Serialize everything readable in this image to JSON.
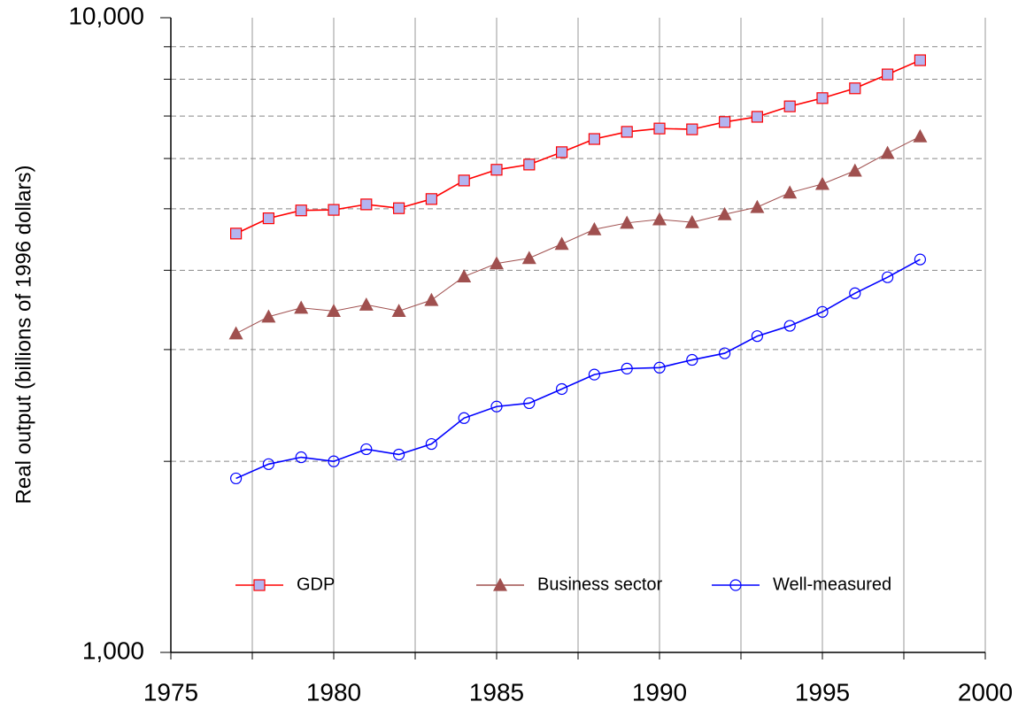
{
  "chart_data": {
    "type": "line",
    "y_label": "Real output (billions of 1996 dollars)",
    "x": [
      1977,
      1978,
      1979,
      1980,
      1981,
      1982,
      1983,
      1984,
      1985,
      1986,
      1987,
      1988,
      1989,
      1990,
      1991,
      1992,
      1993,
      1994,
      1995,
      1996,
      1997,
      1998
    ],
    "series": [
      {
        "name": "GDP",
        "color": "#ff0000",
        "marker": "square",
        "marker_fill": "#b4b4f0",
        "values": [
          4570,
          4830,
          4970,
          4980,
          5080,
          5010,
          5180,
          5540,
          5760,
          5870,
          6140,
          6440,
          6610,
          6690,
          6670,
          6850,
          6980,
          7250,
          7470,
          7740,
          8140,
          8570
        ]
      },
      {
        "name": "Business sector",
        "color": "#a0504f",
        "marker": "triangle",
        "marker_fill": "#a0504f",
        "values": [
          3180,
          3380,
          3490,
          3450,
          3530,
          3450,
          3590,
          3910,
          4100,
          4180,
          4400,
          4640,
          4750,
          4810,
          4760,
          4900,
          5030,
          5300,
          5470,
          5740,
          6120,
          6500
        ]
      },
      {
        "name": "Well-measured",
        "color": "#0000ff",
        "marker": "circle",
        "marker_fill": "none",
        "values": [
          1880,
          1980,
          2030,
          2000,
          2090,
          2050,
          2130,
          2340,
          2440,
          2470,
          2600,
          2740,
          2800,
          2810,
          2890,
          2960,
          3150,
          3270,
          3440,
          3680,
          3900,
          4160
        ]
      }
    ],
    "xlim": [
      1975,
      2000
    ],
    "xticks": [
      1975,
      1980,
      1985,
      1990,
      1995,
      2000
    ],
    "minor_xticks": [
      1977.5,
      1982.5,
      1987.5,
      1992.5,
      1997.5
    ],
    "ylim": [
      1000,
      10000
    ],
    "yticks": [
      {
        "value": 1000,
        "label": "1,000"
      },
      {
        "value": 10000,
        "label": "10,000"
      }
    ],
    "minor_yticks": [
      2000,
      3000,
      4000,
      5000,
      6000,
      7000,
      8000,
      9000
    ],
    "log_y": true,
    "grid": true,
    "legend": "bottom"
  }
}
